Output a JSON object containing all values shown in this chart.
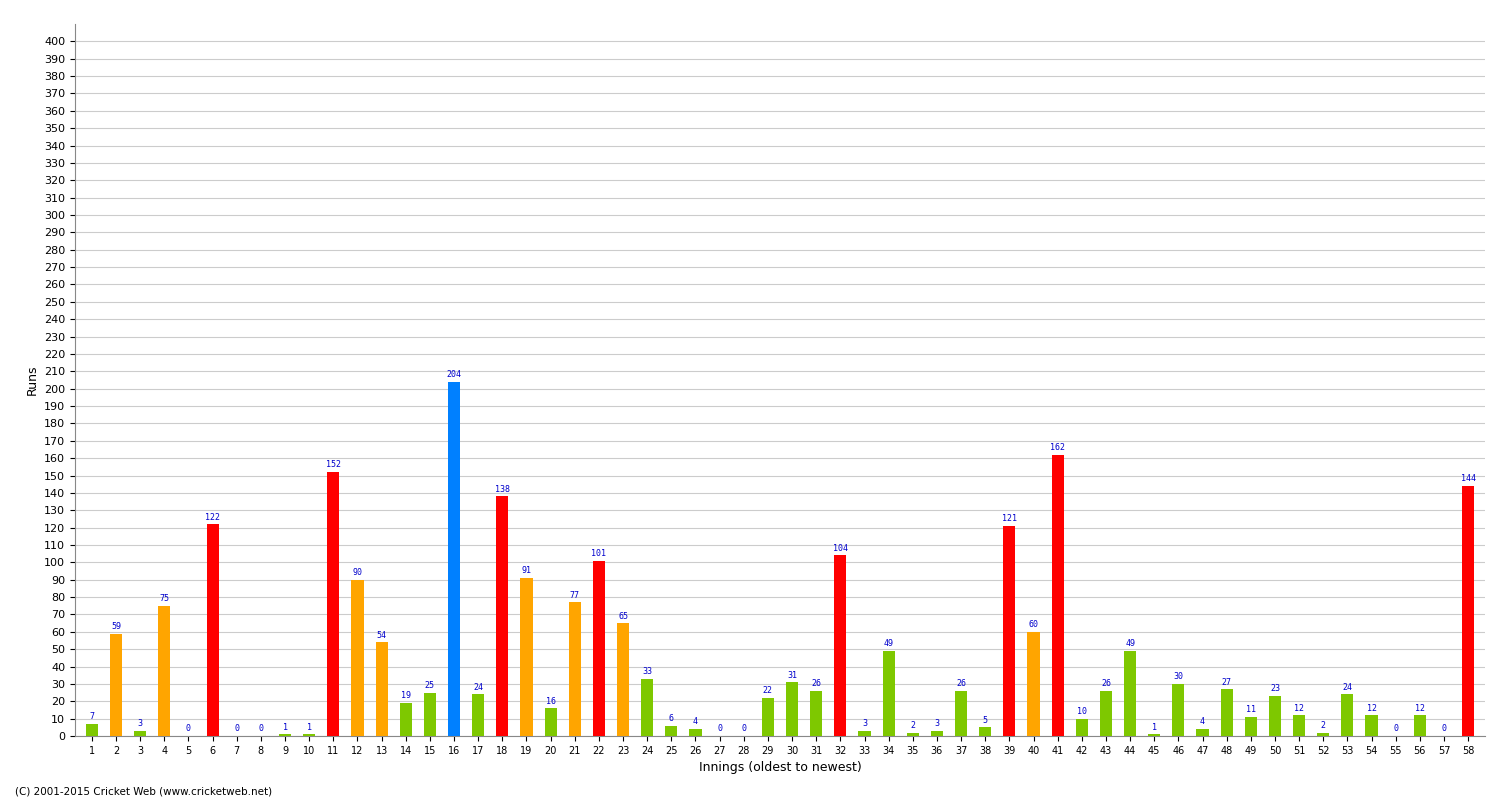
{
  "title": "",
  "xlabel": "Innings (oldest to newest)",
  "ylabel": "Runs",
  "innings": [
    1,
    2,
    3,
    4,
    5,
    6,
    7,
    8,
    9,
    10,
    11,
    12,
    13,
    14,
    15,
    16,
    17,
    18,
    19,
    20,
    21,
    22,
    23,
    24,
    25,
    26,
    27,
    28,
    29,
    30,
    31,
    32,
    33,
    34,
    35,
    36,
    37,
    38,
    39,
    40,
    41,
    42,
    43,
    44,
    45,
    46,
    47,
    48,
    49,
    50,
    51,
    52,
    53,
    54,
    55,
    56,
    57,
    58
  ],
  "values": [
    7,
    59,
    3,
    75,
    0,
    122,
    0,
    0,
    1,
    1,
    152,
    90,
    54,
    19,
    25,
    204,
    24,
    138,
    91,
    16,
    77,
    101,
    65,
    33,
    6,
    4,
    0,
    0,
    22,
    31,
    26,
    104,
    3,
    49,
    2,
    3,
    26,
    5,
    121,
    60,
    162,
    10,
    26,
    49,
    1,
    30,
    4,
    27,
    11,
    23,
    12,
    2,
    24,
    12,
    0,
    12,
    0,
    144
  ],
  "colors": [
    "#7EC800",
    "#FFA500",
    "#7EC800",
    "#FFA500",
    "#7EC800",
    "#FF0000",
    "#7EC800",
    "#7EC800",
    "#7EC800",
    "#7EC800",
    "#FF0000",
    "#FFA500",
    "#FFA500",
    "#7EC800",
    "#7EC800",
    "#0080FF",
    "#7EC800",
    "#FF0000",
    "#FFA500",
    "#7EC800",
    "#FFA500",
    "#FF0000",
    "#FFA500",
    "#7EC800",
    "#7EC800",
    "#7EC800",
    "#7EC800",
    "#7EC800",
    "#7EC800",
    "#7EC800",
    "#7EC800",
    "#FF0000",
    "#7EC800",
    "#7EC800",
    "#7EC800",
    "#7EC800",
    "#7EC800",
    "#7EC800",
    "#FF0000",
    "#FFA500",
    "#FF0000",
    "#7EC800",
    "#7EC800",
    "#7EC800",
    "#7EC800",
    "#7EC800",
    "#7EC800",
    "#7EC800",
    "#7EC800",
    "#7EC800",
    "#7EC800",
    "#7EC800",
    "#7EC800",
    "#7EC800",
    "#7EC800",
    "#7EC800",
    "#7EC800",
    "#FF0000"
  ],
  "ylim": [
    0,
    410
  ],
  "yticks": [
    0,
    10,
    20,
    30,
    40,
    50,
    60,
    70,
    80,
    90,
    100,
    110,
    120,
    130,
    140,
    150,
    160,
    170,
    180,
    190,
    200,
    210,
    220,
    230,
    240,
    250,
    260,
    270,
    280,
    290,
    300,
    310,
    320,
    330,
    340,
    350,
    360,
    370,
    380,
    390,
    400
  ],
  "bg_color": "#FFFFFF",
  "grid_color": "#CCCCCC",
  "label_color": "#0000CC",
  "label_fontsize": 6.0,
  "bar_width": 0.5,
  "footer": "(C) 2001-2015 Cricket Web (www.cricketweb.net)"
}
